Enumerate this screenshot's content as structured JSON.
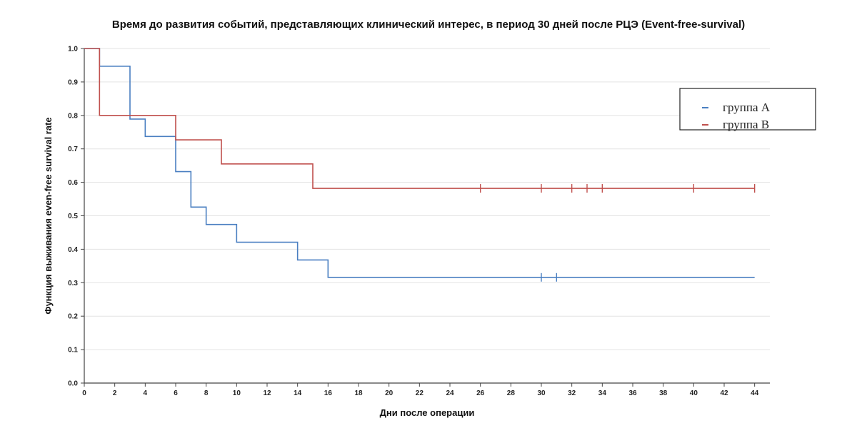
{
  "chart_data": {
    "type": "line",
    "step": true,
    "title": "Время до развития событий, представляющих клинический интерес, в период 30 дней после РЦЭ (Event-free-survival)",
    "xlabel": "Дни после операции",
    "ylabel": "Функция выживания  even-free survival rate",
    "xlim": [
      0,
      45
    ],
    "ylim": [
      0,
      1.0
    ],
    "x_ticks": [
      0,
      2,
      4,
      6,
      8,
      10,
      12,
      14,
      16,
      18,
      20,
      22,
      24,
      26,
      28,
      30,
      32,
      34,
      36,
      38,
      40,
      42,
      44
    ],
    "y_ticks": [
      0.0,
      0.1,
      0.2,
      0.3,
      0.4,
      0.5,
      0.6,
      0.7,
      0.8,
      0.9,
      1.0
    ],
    "grid": "horizontal",
    "legend_position": "top-right",
    "series": [
      {
        "name": "группа А",
        "color": "#4a7fc1",
        "x": [
          0,
          1,
          3,
          4,
          6,
          7,
          8,
          10,
          14,
          16,
          44
        ],
        "y": [
          1.0,
          0.947,
          0.789,
          0.737,
          0.632,
          0.526,
          0.474,
          0.421,
          0.368,
          0.316,
          0.316
        ],
        "censored_x": [
          30,
          31
        ]
      },
      {
        "name": "группа В",
        "color": "#c0504d",
        "x": [
          0,
          1,
          6,
          9,
          15,
          44
        ],
        "y": [
          1.0,
          0.8,
          0.727,
          0.655,
          0.582,
          0.582
        ],
        "censored_x": [
          26,
          30,
          32,
          33,
          34,
          40,
          44
        ]
      }
    ]
  }
}
